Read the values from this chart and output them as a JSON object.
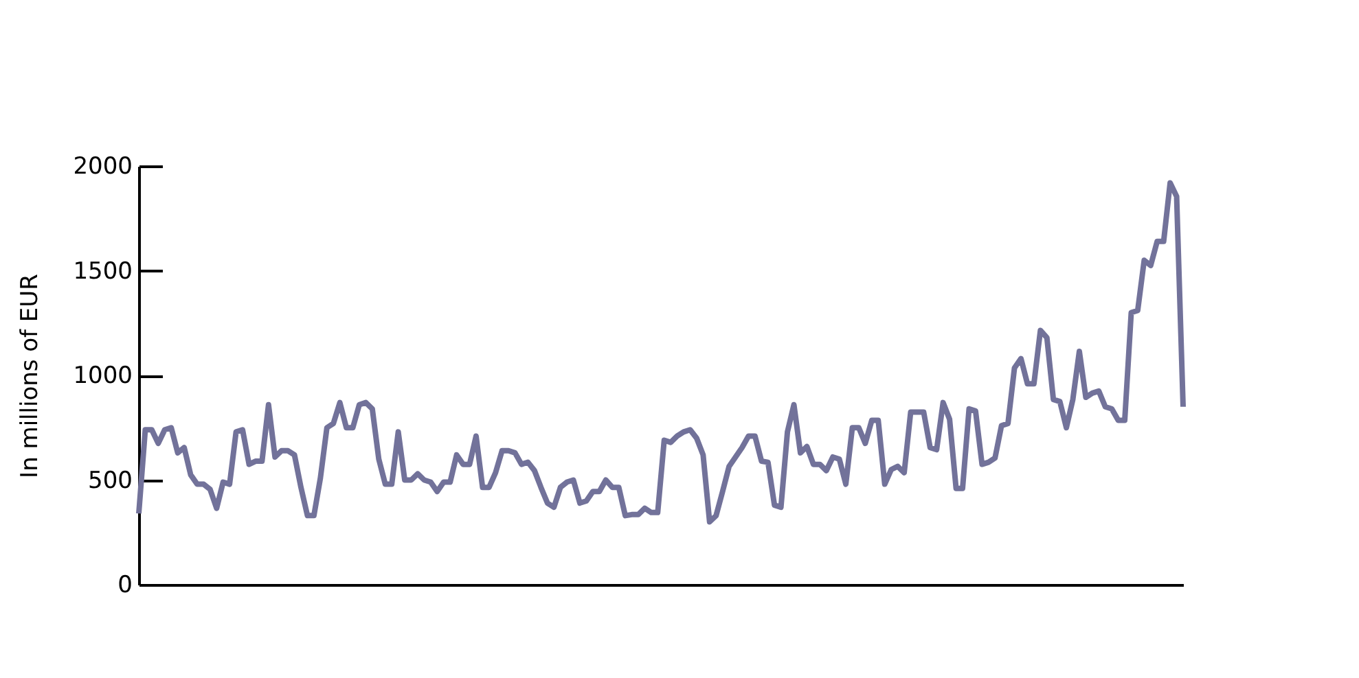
{
  "chart_data": {
    "type": "line",
    "ylabel": "In millions of EUR",
    "ylim": [
      0,
      2000
    ],
    "yticks": [
      0,
      500,
      1000,
      1500,
      2000
    ],
    "grid": false,
    "marker": "none",
    "line_style": "solid",
    "categories": [
      null,
      null,
      null,
      null,
      null,
      null,
      null,
      null,
      null,
      null,
      null,
      null,
      null,
      null,
      null,
      null,
      null,
      null,
      null,
      null,
      null,
      null,
      null,
      null,
      null,
      null,
      null,
      null,
      null,
      null,
      null,
      null,
      null,
      null,
      null,
      null,
      null,
      null,
      null,
      null,
      null,
      null,
      null,
      null,
      null,
      null,
      null,
      null,
      null,
      null,
      null,
      null,
      null,
      null,
      null,
      null,
      null,
      null,
      null,
      null,
      null,
      null,
      null,
      null,
      null,
      null,
      null,
      null,
      null,
      null,
      null,
      null,
      null,
      null,
      null,
      null,
      null,
      null,
      null,
      null,
      null,
      null,
      null,
      null,
      null,
      null,
      null,
      null,
      null,
      null,
      null,
      null,
      null,
      null,
      null,
      null,
      null,
      null,
      null,
      null,
      null,
      null,
      null,
      null,
      null,
      null,
      null,
      null,
      null,
      null,
      null,
      null,
      null,
      null,
      null,
      null,
      null,
      null,
      null,
      null,
      null,
      null,
      null,
      null,
      null,
      null,
      null,
      null,
      null,
      null,
      null,
      null,
      null,
      null,
      null,
      null,
      null,
      null,
      null,
      null,
      null,
      null,
      null,
      null,
      null,
      null,
      null,
      null,
      null,
      null,
      null,
      null,
      null,
      null,
      null,
      null,
      null,
      null,
      null,
      null,
      null,
      null
    ],
    "series": [
      {
        "color": "#72729a",
        "values": [
          340,
          740,
          740,
          675,
          740,
          750,
          630,
          655,
          525,
          480,
          480,
          455,
          365,
          490,
          480,
          730,
          740,
          575,
          590,
          590,
          860,
          610,
          640,
          640,
          620,
          465,
          330,
          330,
          510,
          750,
          770,
          870,
          750,
          750,
          860,
          870,
          840,
          600,
          480,
          480,
          730,
          500,
          500,
          530,
          500,
          490,
          445,
          490,
          490,
          620,
          575,
          575,
          710,
          465,
          465,
          535,
          640,
          640,
          630,
          575,
          585,
          545,
          465,
          390,
          370,
          465,
          490,
          500,
          390,
          400,
          445,
          445,
          500,
          465,
          465,
          330,
          335,
          335,
          365,
          345,
          345,
          690,
          680,
          710,
          730,
          740,
          700,
          620,
          300,
          330,
          445,
          565,
          610,
          655,
          710,
          710,
          590,
          585,
          380,
          370,
          730,
          860,
          630,
          660,
          575,
          575,
          545,
          610,
          600,
          480,
          750,
          750,
          675,
          785,
          785,
          480,
          550,
          565,
          535,
          825,
          825,
          825,
          655,
          645,
          870,
          790,
          460,
          460,
          840,
          830,
          575,
          585,
          605,
          760,
          770,
          1035,
          1080,
          960,
          960,
          1215,
          1180,
          885,
          875,
          750,
          885,
          1115,
          895,
          915,
          925,
          850,
          840,
          785,
          785,
          1300,
          1310,
          1550,
          1525,
          1640,
          1640,
          1920,
          1855,
          850
        ]
      }
    ]
  }
}
